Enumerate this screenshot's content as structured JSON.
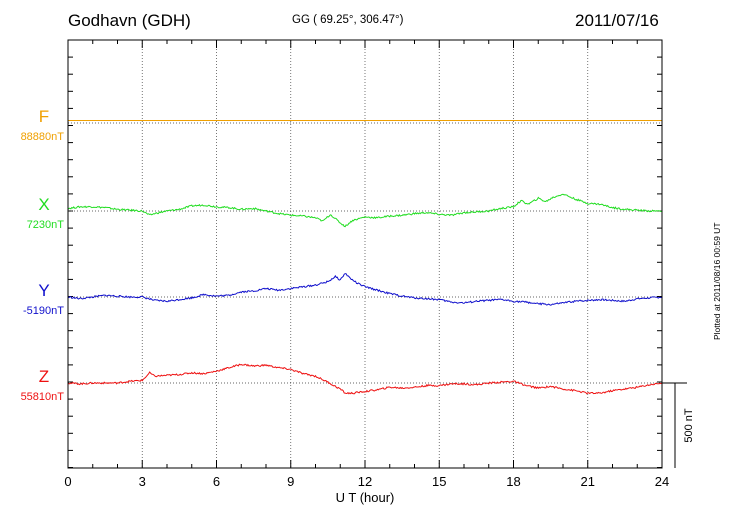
{
  "header": {
    "station": "Godhavn (GDH)",
    "coords": "GG ( 69.25°, 306.47°)",
    "date": "2011/07/16"
  },
  "side_note": "Plotted at 2011/08/16 00:59 UT",
  "colors": {
    "F": "#f0a000",
    "X": "#22dd22",
    "Y": "#1010cc",
    "Z": "#ee1111"
  },
  "chart_data": {
    "type": "line",
    "title": "Godhavn (GDH)",
    "xlabel": "U T (hour)",
    "xlim": [
      0,
      24
    ],
    "x_ticks": [
      "0",
      "3",
      "6",
      "9",
      "12",
      "15",
      "18",
      "21",
      "24"
    ],
    "scale_label": "500 nT",
    "scale_nT": 500,
    "grid": true,
    "series": [
      {
        "name": "F",
        "baseline_label": "88880nT",
        "x": [
          0,
          24
        ],
        "values": [
          15,
          15
        ]
      },
      {
        "name": "X",
        "baseline_label": "7230nT",
        "x": [
          0,
          0.5,
          1,
          1.5,
          2,
          2.5,
          3,
          3.3,
          3.5,
          4,
          4.5,
          5,
          5.5,
          6,
          6.5,
          7,
          7.5,
          8,
          8.5,
          9,
          9.5,
          10,
          10.3,
          10.6,
          11,
          11.2,
          11.5,
          12,
          12.5,
          13,
          13.5,
          14,
          14.5,
          15,
          15.5,
          16,
          16.5,
          17,
          17.5,
          18,
          18.3,
          18.6,
          19,
          19.3,
          19.6,
          20,
          20.5,
          21,
          21.5,
          22,
          22.5,
          23,
          23.5,
          24
        ],
        "values": [
          15,
          25,
          25,
          20,
          10,
          5,
          0,
          -25,
          -15,
          0,
          10,
          30,
          35,
          25,
          20,
          10,
          15,
          0,
          -15,
          -25,
          -30,
          -40,
          -60,
          -20,
          -70,
          -90,
          -55,
          -35,
          -40,
          -30,
          -25,
          -15,
          -10,
          -20,
          -25,
          -10,
          -5,
          0,
          15,
          25,
          60,
          40,
          75,
          55,
          80,
          100,
          70,
          45,
          40,
          20,
          10,
          5,
          0,
          0
        ]
      },
      {
        "name": "Y",
        "baseline_label": "-5190nT",
        "x": [
          0,
          0.5,
          1,
          1.5,
          2,
          2.5,
          3,
          3.5,
          4,
          4.5,
          5,
          5.5,
          6,
          6.5,
          7,
          7.5,
          8,
          8.5,
          9,
          9.5,
          10,
          10.5,
          10.8,
          11,
          11.2,
          11.4,
          11.7,
          12,
          12.5,
          13,
          13.5,
          14,
          14.5,
          15,
          15.5,
          16,
          16.5,
          17,
          17.5,
          18,
          18.5,
          19,
          19.5,
          20,
          20.5,
          21,
          21.5,
          22,
          22.5,
          23,
          23.5,
          24
        ],
        "values": [
          0,
          -10,
          0,
          10,
          5,
          0,
          0,
          -20,
          -25,
          -15,
          -5,
          15,
          5,
          10,
          30,
          35,
          50,
          40,
          50,
          60,
          70,
          90,
          120,
          100,
          140,
          110,
          80,
          60,
          40,
          20,
          5,
          -5,
          -10,
          -15,
          -30,
          -35,
          -25,
          -20,
          -15,
          -25,
          -30,
          -40,
          -45,
          -35,
          -25,
          -20,
          -15,
          -20,
          -25,
          -10,
          -5,
          0
        ]
      },
      {
        "name": "Z",
        "baseline_label": "55810nT",
        "x": [
          0,
          0.5,
          1,
          1.5,
          2,
          2.5,
          3,
          3.3,
          3.5,
          4,
          4.5,
          5,
          5.5,
          6,
          6.5,
          7,
          7.5,
          8,
          8.5,
          9,
          9.5,
          10,
          10.5,
          10.8,
          11,
          11.2,
          11.5,
          12,
          12.5,
          13,
          13.5,
          14,
          14.5,
          15,
          15.5,
          16,
          16.5,
          17,
          17.5,
          18,
          18.5,
          19,
          19.5,
          20,
          20.5,
          21,
          21.5,
          22,
          22.5,
          23,
          23.5,
          24
        ],
        "values": [
          0,
          -5,
          0,
          0,
          0,
          10,
          15,
          60,
          40,
          45,
          50,
          60,
          55,
          70,
          90,
          110,
          100,
          105,
          90,
          80,
          55,
          40,
          5,
          -20,
          -35,
          -60,
          -60,
          -50,
          -40,
          -25,
          -30,
          -25,
          -15,
          -15,
          -5,
          -5,
          -10,
          0,
          5,
          10,
          -15,
          -30,
          -20,
          -35,
          -45,
          -60,
          -60,
          -45,
          -35,
          -25,
          -10,
          0
        ]
      }
    ]
  }
}
